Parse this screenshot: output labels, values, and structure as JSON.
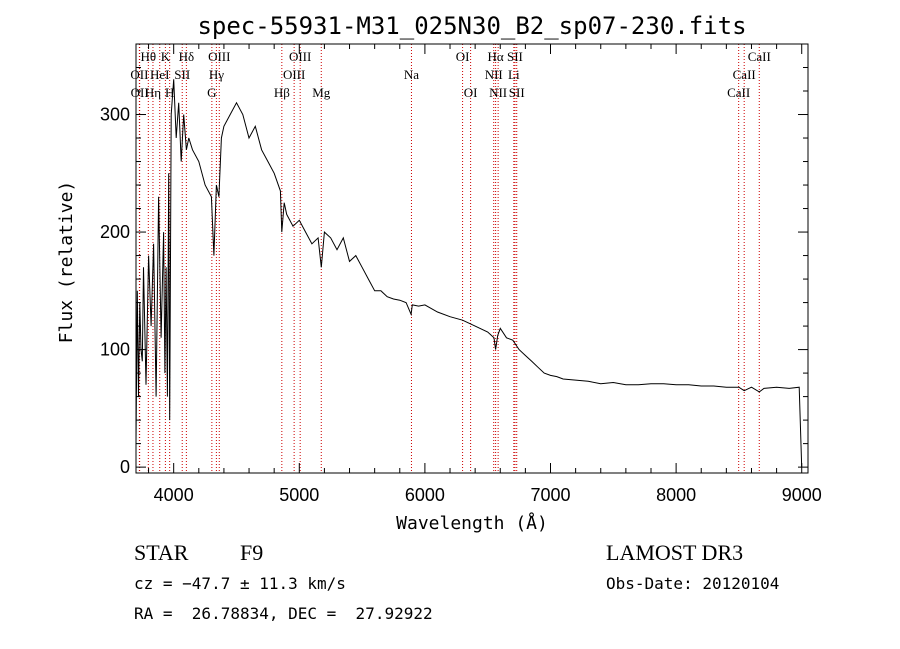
{
  "chart_data": {
    "type": "line",
    "title": "spec-55931-M31_025N30_B2_sp07-230.fits",
    "xlabel": "Wavelength (Å)",
    "ylabel": "Flux (relative)",
    "xlim": [
      3700,
      9050
    ],
    "ylim": [
      -5,
      360
    ],
    "xticks": [
      4000,
      5000,
      6000,
      7000,
      8000,
      9000
    ],
    "yticks": [
      0,
      100,
      200,
      300
    ],
    "series": [
      {
        "name": "spectrum",
        "color": "#000000",
        "x": [
          3700,
          3710,
          3720,
          3730,
          3740,
          3750,
          3760,
          3780,
          3800,
          3820,
          3840,
          3860,
          3880,
          3900,
          3920,
          3930,
          3940,
          3950,
          3960,
          3968,
          3980,
          4000,
          4020,
          4040,
          4060,
          4080,
          4101,
          4120,
          4150,
          4200,
          4250,
          4300,
          4320,
          4340,
          4360,
          4380,
          4400,
          4450,
          4500,
          4550,
          4600,
          4650,
          4700,
          4750,
          4800,
          4850,
          4861,
          4880,
          4900,
          4950,
          5000,
          5050,
          5100,
          5150,
          5175,
          5200,
          5250,
          5300,
          5350,
          5400,
          5450,
          5500,
          5550,
          5600,
          5650,
          5700,
          5750,
          5800,
          5850,
          5890,
          5900,
          5950,
          6000,
          6100,
          6200,
          6300,
          6400,
          6500,
          6550,
          6563,
          6580,
          6600,
          6650,
          6700,
          6750,
          6800,
          6850,
          6900,
          6950,
          7000,
          7050,
          7100,
          7200,
          7300,
          7400,
          7500,
          7600,
          7700,
          7800,
          7900,
          8000,
          8100,
          8200,
          8300,
          8400,
          8500,
          8542,
          8600,
          8662,
          8700,
          8800,
          8900,
          8980,
          9000
        ],
        "values": [
          20,
          150,
          60,
          140,
          100,
          90,
          170,
          70,
          180,
          120,
          190,
          60,
          230,
          110,
          200,
          80,
          170,
          60,
          250,
          40,
          300,
          330,
          280,
          310,
          260,
          300,
          270,
          280,
          270,
          260,
          240,
          230,
          180,
          240,
          230,
          280,
          290,
          300,
          310,
          300,
          280,
          290,
          270,
          260,
          250,
          235,
          200,
          225,
          215,
          205,
          210,
          200,
          190,
          195,
          170,
          200,
          195,
          185,
          195,
          175,
          180,
          170,
          160,
          150,
          150,
          145,
          143,
          142,
          140,
          130,
          138,
          137,
          138,
          132,
          128,
          125,
          120,
          115,
          110,
          100,
          112,
          118,
          110,
          108,
          100,
          95,
          90,
          85,
          80,
          78,
          77,
          75,
          74,
          73,
          71,
          72,
          70,
          70,
          71,
          71,
          70,
          70,
          69,
          69,
          68,
          68,
          65,
          68,
          64,
          67,
          68,
          67,
          68,
          0
        ]
      }
    ],
    "lines_top": [
      {
        "label": "Hθ",
        "x": 3798
      },
      {
        "label": "K",
        "x": 3934
      },
      {
        "label": "Hδ",
        "x": 4101
      },
      {
        "label": "OIII",
        "x": 4363
      },
      {
        "label": "OIII",
        "x": 5007
      },
      {
        "label": "OI",
        "x": 6300
      },
      {
        "label": "Hα",
        "x": 6563
      },
      {
        "label": "SII",
        "x": 6717
      },
      {
        "label": "CaII",
        "x": 8662
      }
    ],
    "lines_mid": [
      {
        "label": "OII",
        "x": 3727
      },
      {
        "label": "HeI",
        "x": 3889
      },
      {
        "label": "SII",
        "x": 4068
      },
      {
        "label": "Hγ",
        "x": 4340
      },
      {
        "label": "OIII",
        "x": 4959
      },
      {
        "label": "Na",
        "x": 5893
      },
      {
        "label": "NII",
        "x": 6548
      },
      {
        "label": "Li",
        "x": 6708
      },
      {
        "label": "CaII",
        "x": 8542
      }
    ],
    "lines_low": [
      {
        "label": "OII",
        "x": 3729
      },
      {
        "label": "Hη",
        "x": 3835
      },
      {
        "label": "H",
        "x": 3968
      },
      {
        "label": "G",
        "x": 4304
      },
      {
        "label": "Hβ",
        "x": 4861
      },
      {
        "label": "Mg",
        "x": 5175
      },
      {
        "label": "OI",
        "x": 6364
      },
      {
        "label": "NII",
        "x": 6583
      },
      {
        "label": "SII",
        "x": 6731
      },
      {
        "label": "CaII",
        "x": 8498
      }
    ]
  },
  "info": {
    "object_class": "STAR",
    "subclass": "F9",
    "survey": "LAMOST DR3",
    "cz": "cz = −47.7 ± 11.3 km/s",
    "obs_date": "Obs-Date: 20120104",
    "coords": "RA =  26.78834, DEC =  27.92922"
  },
  "colors": {
    "line_marker": "#cc0000",
    "spectrum": "#000000",
    "axes": "#000000"
  }
}
